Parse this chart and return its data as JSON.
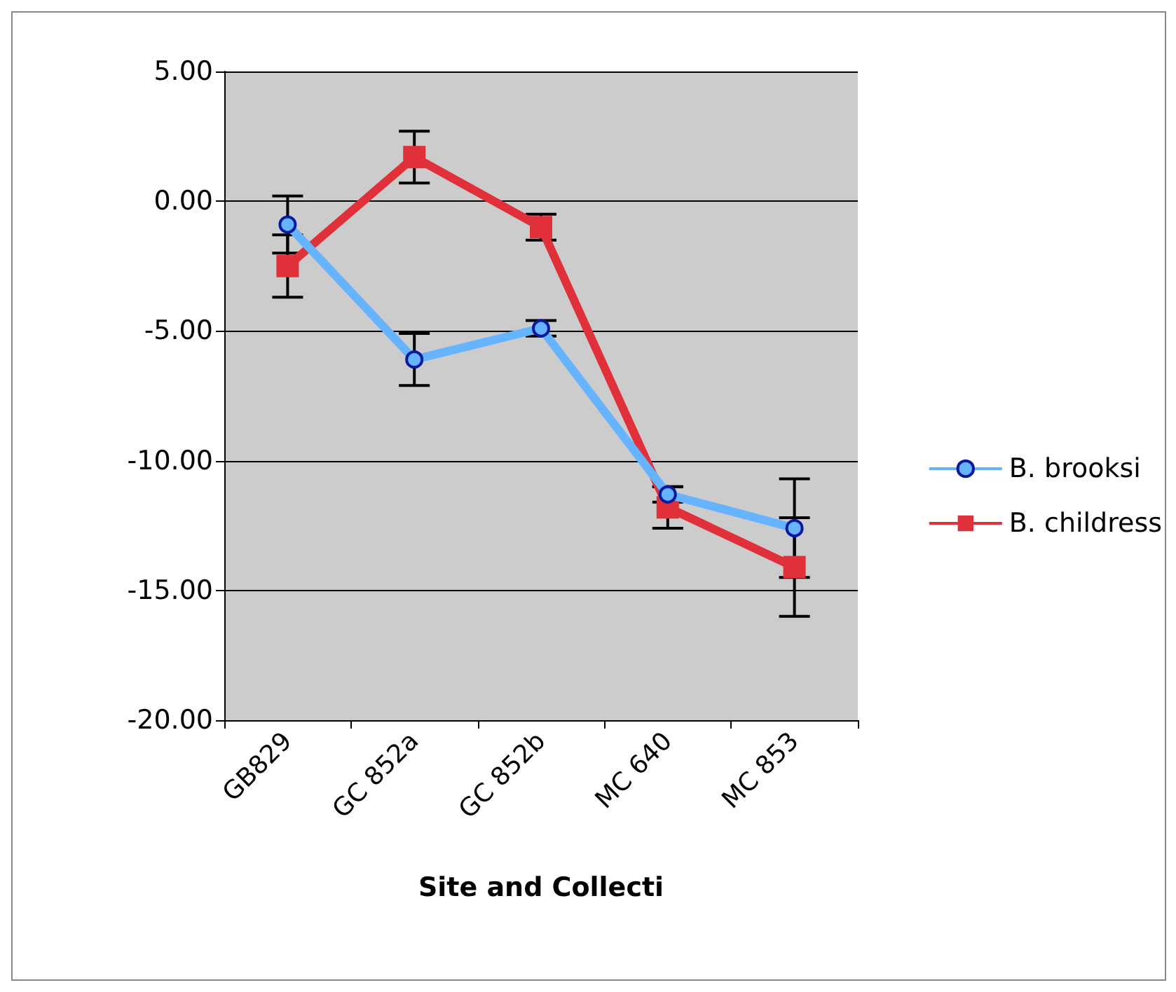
{
  "chart_data": {
    "type": "line",
    "xlabel": "Site and Collecti",
    "categories": [
      "GB829",
      "GC 852a",
      "GC 852b",
      "MC 640",
      "MC 853"
    ],
    "series": [
      {
        "name": "B. brooksi",
        "color": "#66b3ff",
        "marker": "circle",
        "values": [
          -0.9,
          -6.1,
          -4.9,
          -11.3,
          -12.6
        ],
        "errors": [
          1.1,
          1.0,
          0.3,
          0.3,
          1.9
        ]
      },
      {
        "name": "B. childress",
        "color": "#e0303a",
        "marker": "square",
        "values": [
          -2.5,
          1.7,
          -1.0,
          -11.8,
          -14.1
        ],
        "errors": [
          1.2,
          1.0,
          0.5,
          0.8,
          1.9
        ]
      }
    ],
    "ylim": [
      -20,
      5
    ],
    "yticks": [
      {
        "value": -20,
        "label": "-20.00"
      },
      {
        "value": -15,
        "label": "-15.00"
      },
      {
        "value": -10,
        "label": "-10.00"
      },
      {
        "value": -5,
        "label": "-5.00"
      },
      {
        "value": 0,
        "label": "0.00"
      },
      {
        "value": 5,
        "label": "5.00"
      }
    ],
    "grid": "y",
    "legend": "right"
  }
}
